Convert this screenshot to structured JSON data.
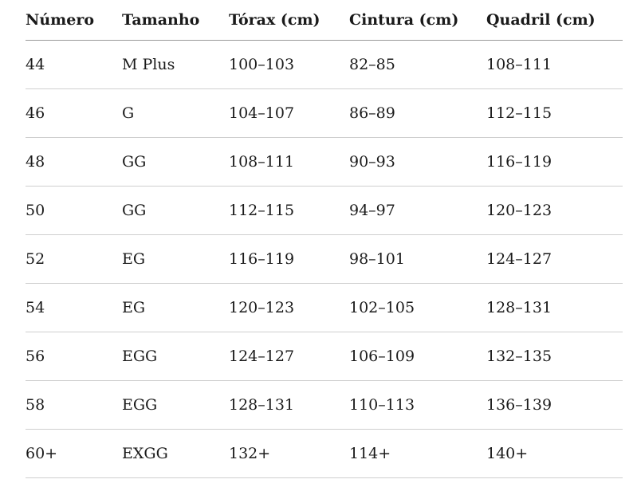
{
  "table": {
    "headers": [
      "Número",
      "Tamanho",
      "Tórax (cm)",
      "Cintura (cm)",
      "Quadril (cm)"
    ],
    "rows": [
      [
        "44",
        "M Plus",
        "100–103",
        "82–85",
        "108–111"
      ],
      [
        "46",
        "G",
        "104–107",
        "86–89",
        "112–115"
      ],
      [
        "48",
        "GG",
        "108–111",
        "90–93",
        "116–119"
      ],
      [
        "50",
        "GG",
        "112–115",
        "94–97",
        "120–123"
      ],
      [
        "52",
        "EG",
        "116–119",
        "98–101",
        "124–127"
      ],
      [
        "54",
        "EG",
        "120–123",
        "102–105",
        "128–131"
      ],
      [
        "56",
        "EGG",
        "124–127",
        "106–109",
        "132–135"
      ],
      [
        "58",
        "EGG",
        "128–131",
        "110–113",
        "136–139"
      ],
      [
        "60+",
        "EXGG",
        "132+",
        "114+",
        "140+"
      ]
    ]
  }
}
